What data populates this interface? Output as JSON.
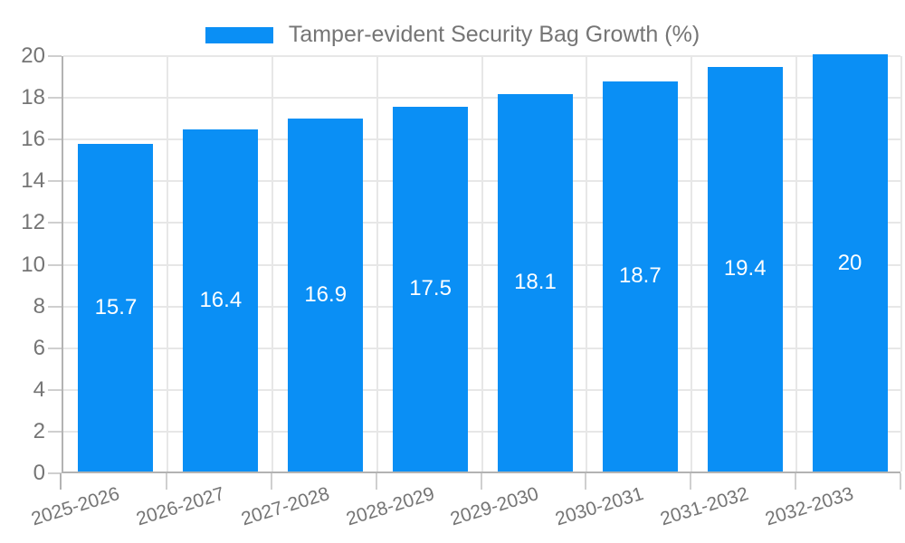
{
  "legend": {
    "label": "Tamper-evident Security Bag Growth (%)"
  },
  "chart_data": {
    "type": "bar",
    "title": "Tamper-evident Security Bag Growth (%)",
    "categories": [
      "2025-2026",
      "2026-2027",
      "2027-2028",
      "2028-2029",
      "2029-2030",
      "2030-2031",
      "2031-2032",
      "2032-2033"
    ],
    "values": [
      15.7,
      16.4,
      16.9,
      17.5,
      18.1,
      18.7,
      19.4,
      20
    ],
    "bar_labels": [
      "15.7",
      "16.4",
      "16.9",
      "17.5",
      "18.1",
      "18.7",
      "19.4",
      "20"
    ],
    "yticks": [
      0,
      2,
      4,
      6,
      8,
      10,
      12,
      14,
      16,
      18,
      20
    ],
    "ylim": [
      0,
      20
    ],
    "xlabel": "",
    "ylabel": "",
    "grid": true,
    "legend_position": "top",
    "colors": {
      "bar": "#0a8ff5",
      "bar_label_text": "#ffffff",
      "axis_text": "#757575",
      "gridline": "#e7e7e7",
      "axis_line": "#b3b3b3",
      "tick": "#cfcfcf",
      "background": "#ffffff"
    }
  }
}
